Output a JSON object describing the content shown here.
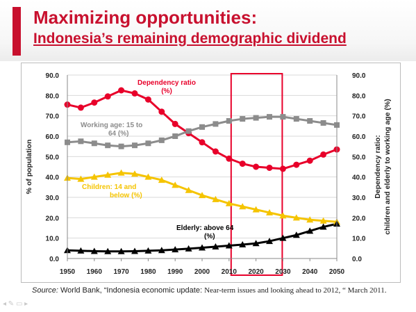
{
  "slide": {
    "title_line1": "Maximizing opportunities:",
    "title_line2": "Indonesia’s remaining demographic dividend",
    "source_label": "Source:",
    "source_text": " World Bank, “Indonesia economic update: ",
    "source_text2": "Near-term issues and looking ahead to 2012, “ March 2011."
  },
  "colors": {
    "accent": "#c8102e",
    "dependency": "#e8002a",
    "working_age": "#8c8c8c",
    "children": "#f5c400",
    "elderly": "#000000",
    "highlight_box": "#e8002a"
  },
  "chart_data": {
    "type": "line",
    "x": [
      1950,
      1955,
      1960,
      1965,
      1970,
      1975,
      1980,
      1985,
      1990,
      1995,
      2000,
      2005,
      2010,
      2015,
      2020,
      2025,
      2030,
      2035,
      2040,
      2045,
      2050
    ],
    "xticks": [
      "1950",
      "1960",
      "1970",
      "1980",
      "1990",
      "2000",
      "2010",
      "2020",
      "2030",
      "2040",
      "2050"
    ],
    "yticks_left": [
      "90.0",
      "80.0",
      "70.0",
      "60.0",
      "50.0",
      "40.0",
      "30.0",
      "20.0",
      "10.0",
      "0.0"
    ],
    "yticks_right": [
      "90.0",
      "80.0",
      "70.0",
      "60.0",
      "50.0",
      "40.0",
      "30.0",
      "20.0",
      "10.0",
      "0.0"
    ],
    "ylim": [
      0,
      90
    ],
    "ylabel_left": "% of population",
    "ylabel_right_line1": "Dependency ratio:",
    "ylabel_right_line2": "children and elderly to working age (%)",
    "highlight_range": [
      2010,
      2030
    ],
    "series": [
      {
        "name": "Dependency ratio (%)",
        "label_line1": "Dependency ratio",
        "label_line2": "(%)",
        "marker": "circle",
        "values": [
          75.5,
          74,
          76.5,
          79.5,
          82.5,
          81,
          78,
          72,
          66,
          61.5,
          57,
          52.5,
          49,
          46.5,
          45,
          44.5,
          44,
          46,
          48,
          51,
          53.5
        ]
      },
      {
        "name": "Working age: 15 to 64 (%)",
        "label_line1": "Working age: 15 to",
        "label_line2": "64 (%)",
        "marker": "square",
        "values": [
          57,
          57.5,
          56.5,
          55.5,
          55,
          55.5,
          56.5,
          58,
          60,
          62.5,
          64.5,
          66,
          67.5,
          68.5,
          69,
          69.5,
          69.5,
          68.5,
          67.5,
          66.5,
          65.5
        ]
      },
      {
        "name": "Children: 14 and below (%)",
        "label_line1": "Children: 14 and",
        "label_line2": "below (%)",
        "marker": "triangle",
        "values": [
          39.5,
          39,
          40,
          41,
          42,
          41.5,
          40,
          38.5,
          36,
          33.5,
          31,
          29,
          27,
          25.5,
          24,
          22.5,
          21,
          20,
          19,
          18.5,
          18
        ]
      },
      {
        "name": "Elderly: above 64 (%)",
        "label_line1": "Elderly: above 64",
        "label_line2": "(%)",
        "marker": "triangle",
        "values": [
          4,
          3.8,
          3.6,
          3.5,
          3.5,
          3.6,
          3.8,
          4,
          4.4,
          4.8,
          5.3,
          5.8,
          6.3,
          6.8,
          7.4,
          8.5,
          10,
          11.5,
          13.5,
          15.5,
          17
        ]
      }
    ]
  }
}
